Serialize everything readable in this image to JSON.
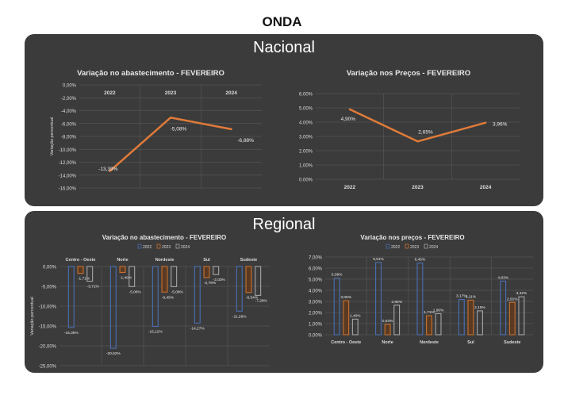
{
  "page_title": "ONDA",
  "sections": {
    "national": "Nacional",
    "regional": "Regional"
  },
  "colors": {
    "panel": "#3b3b3b",
    "line": "#e07b39",
    "y2022": "#4a6fb5",
    "y2023": "#c8702e",
    "y2024": "#a6a6a6"
  },
  "chart_data": [
    {
      "id": "nat-supply",
      "type": "line",
      "title": "Variação no abastecimento - FEVEREIRO",
      "ylabel": "Variação percentual",
      "categories": [
        "2022",
        "2023",
        "2024"
      ],
      "values": [
        -13.39,
        -5.08,
        -6.88
      ],
      "labels": [
        "-13,39%",
        "-5,08%",
        "-6,88%"
      ],
      "ylim": [
        -16,
        0
      ],
      "yticks": [
        "0,00%",
        "-2,00%",
        "-4,00%",
        "-6,00%",
        "-8,00%",
        "-10,00%",
        "-12,00%",
        "-14,00%",
        "-16,00%"
      ]
    },
    {
      "id": "nat-prices",
      "type": "line",
      "title": "Variação nos Preços - FEVEREIRO",
      "categories": [
        "2022",
        "2023",
        "2024"
      ],
      "values": [
        4.9,
        2.65,
        3.96
      ],
      "labels": [
        "4,90%",
        "2,65%",
        "3,96%"
      ],
      "ylim": [
        0,
        6
      ],
      "yticks": [
        "6.00%",
        "5.00%",
        "4.00%",
        "3.00%",
        "2.00%",
        "1.00%",
        "0.00%"
      ]
    },
    {
      "id": "reg-supply",
      "type": "bar",
      "title": "Variação no abastecimento - FEVEREIRO",
      "ylabel": "Variação percentual",
      "legend": [
        "2022",
        "2023",
        "2024"
      ],
      "categories": [
        "Centro - Oeste",
        "Norte",
        "Nordeste",
        "Sul",
        "Sudeste"
      ],
      "series": [
        {
          "name": "2022",
          "values": [
            -15.35,
            -20.62,
            -15.12,
            -14.27,
            -11.26
          ],
          "labels": [
            "-15,35%",
            "-20,62%",
            "-15,12%",
            "-14,27%",
            "-11,26%"
          ]
        },
        {
          "name": "2023",
          "values": [
            -1.71,
            -1.49,
            -6.45,
            -2.79,
            -6.54
          ],
          "labels": [
            "-1,71%",
            "-1,49%",
            "-6,45%",
            "-2,79%",
            "-6,54%"
          ]
        },
        {
          "name": "2024",
          "values": [
            -3.71,
            -5.06,
            -5.08,
            -2.03,
            -7.28
          ],
          "labels": [
            "-3,71%",
            "-5,06%",
            "-5,08%",
            "-2,03%",
            "-7,28%"
          ]
        }
      ],
      "ylim": [
        -25,
        0
      ],
      "yticks": [
        "0,00%",
        "-5,00%",
        "-10,00%",
        "-15,00%",
        "-20,00%",
        "-25,00%"
      ]
    },
    {
      "id": "reg-prices",
      "type": "bar",
      "title": "Variação nos preços - FEVEREIRO",
      "legend": [
        "2022",
        "2023",
        "2024"
      ],
      "categories": [
        "Centro - Oeste",
        "Norte",
        "Nordeste",
        "Sul",
        "Sudeste"
      ],
      "series": [
        {
          "name": "2022",
          "values": [
            5.09,
            6.51,
            6.45,
            3.17,
            4.83
          ],
          "labels": [
            "5,09%",
            "6,51%",
            "6,45%",
            "3,17%",
            "4,83%"
          ]
        },
        {
          "name": "2023",
          "values": [
            3.06,
            0.93,
            1.71,
            3.11,
            2.91
          ],
          "labels": [
            "3,06%",
            "0,93%",
            "1,71%",
            "3,11%",
            "2,91%"
          ]
        },
        {
          "name": "2024",
          "values": [
            1.4,
            2.66,
            1.9,
            2.15,
            3.42
          ],
          "labels": [
            "1,40%",
            "2,66%",
            "1,90%",
            "2,15%",
            "3,42%"
          ]
        }
      ],
      "ylim": [
        0,
        7
      ],
      "yticks": [
        "7,00%",
        "6,00%",
        "5,00%",
        "4,00%",
        "3,00%",
        "2,00%",
        "1,00%",
        "0,00%"
      ]
    }
  ]
}
